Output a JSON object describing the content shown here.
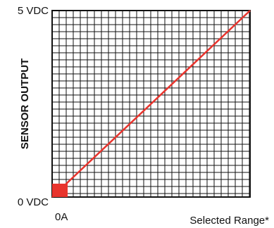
{
  "chart_data": {
    "type": "line",
    "title": "",
    "xlabel": "Selected Range*",
    "ylabel": "SENSOR OUTPUT",
    "x_tick_labels": [
      "0A"
    ],
    "y_tick_labels": [
      "5 VDC",
      "0 VDC"
    ],
    "xlim": [
      0,
      1
    ],
    "ylim": [
      0,
      5
    ],
    "grid": true,
    "series": [
      {
        "x": [
          0,
          1
        ],
        "y": [
          0,
          5
        ]
      }
    ],
    "colors": {
      "line": "#e8342d",
      "origin_marker": "#e8342d",
      "grid": "#111111",
      "axis": "#111111"
    }
  }
}
